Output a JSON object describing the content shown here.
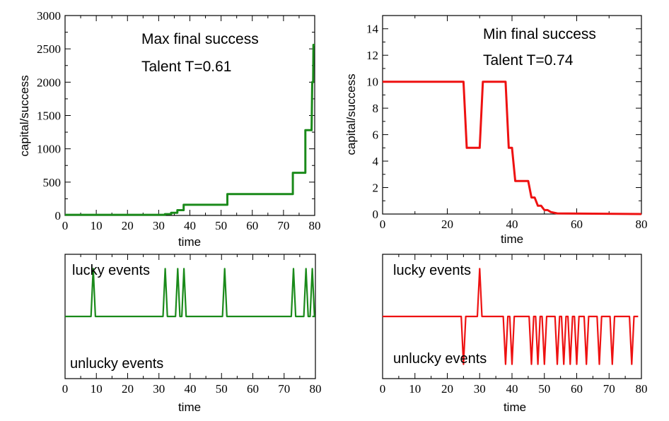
{
  "colors": {
    "green": "#1a8a1a",
    "red": "#ee1111"
  },
  "chart_data": [
    {
      "id": "panel-max-success",
      "type": "line",
      "xlabel": "time",
      "ylabel": "capital/success",
      "xlim": [
        0,
        80
      ],
      "ylim": [
        0,
        3000
      ],
      "xticks": [
        0,
        10,
        20,
        30,
        40,
        50,
        60,
        70,
        80
      ],
      "yticks": [
        0,
        500,
        1000,
        1500,
        2000,
        2500,
        3000
      ],
      "annotations": [
        "Max final success",
        "Talent T=0.61"
      ],
      "series": [
        {
          "color": "#1a8a1a",
          "points": [
            [
              0,
              10
            ],
            [
              32,
              10
            ],
            [
              32,
              20
            ],
            [
              34,
              20
            ],
            [
              34,
              40
            ],
            [
              36,
              40
            ],
            [
              36,
              80
            ],
            [
              38,
              80
            ],
            [
              38,
              160
            ],
            [
              51,
              160
            ],
            [
              51,
              160
            ],
            [
              52,
              160
            ],
            [
              52,
              320
            ],
            [
              73,
              320
            ],
            [
              73,
              640
            ],
            [
              77,
              640
            ],
            [
              77,
              1280
            ],
            [
              79,
              1280
            ],
            [
              79,
              1280
            ],
            [
              79.2,
              2000
            ],
            [
              79.5,
              2000
            ],
            [
              79.6,
              2560
            ],
            [
              80,
              2560
            ]
          ]
        }
      ]
    },
    {
      "id": "panel-min-success",
      "type": "line",
      "xlabel": "time",
      "ylabel": "capital/success",
      "xlim": [
        0,
        80
      ],
      "ylim": [
        0,
        15
      ],
      "xticks": [
        0,
        20,
        40,
        60,
        80
      ],
      "yticks": [
        0,
        2,
        4,
        6,
        8,
        10,
        12,
        14
      ],
      "annotations": [
        "Min final success",
        "Talent T=0.74"
      ],
      "series": [
        {
          "color": "#ee1111",
          "points": [
            [
              0,
              10
            ],
            [
              25,
              10
            ],
            [
              26,
              5
            ],
            [
              30,
              5
            ],
            [
              31,
              10
            ],
            [
              38,
              10
            ],
            [
              39,
              5
            ],
            [
              40,
              5
            ],
            [
              41,
              2.5
            ],
            [
              45,
              2.5
            ],
            [
              46,
              1.25
            ],
            [
              47,
              1.25
            ],
            [
              48,
              0.625
            ],
            [
              49,
              0.625
            ],
            [
              50,
              0.3
            ],
            [
              51,
              0.3
            ],
            [
              52,
              0.15
            ],
            [
              54,
              0.05
            ],
            [
              80,
              0
            ]
          ]
        }
      ]
    },
    {
      "id": "panel-events-green",
      "type": "line",
      "xlabel": "time",
      "xlim": [
        0,
        80
      ],
      "ylim": [
        -1.3,
        1.3
      ],
      "xticks": [
        0,
        10,
        20,
        30,
        40,
        50,
        60,
        70,
        80
      ],
      "annotations": [
        "lucky events",
        "unlucky events"
      ],
      "lucky_times": [
        9,
        32,
        36,
        38,
        51,
        73,
        77,
        79
      ],
      "unlucky_times": [],
      "event_xrange": [
        0,
        79
      ],
      "color": "#1a8a1a"
    },
    {
      "id": "panel-events-red",
      "type": "line",
      "xlabel": "time",
      "xlim": [
        0,
        80
      ],
      "ylim": [
        -1.3,
        1.3
      ],
      "xticks": [
        0,
        10,
        20,
        30,
        40,
        50,
        60,
        70,
        80
      ],
      "annotations": [
        "lucky events",
        "unlucky events"
      ],
      "lucky_times": [
        30
      ],
      "unlucky_times": [
        25,
        38,
        40,
        46,
        48,
        50,
        54,
        56,
        58,
        60,
        63,
        67,
        71,
        77
      ],
      "event_xrange": [
        0,
        79
      ],
      "color": "#ee1111"
    }
  ]
}
